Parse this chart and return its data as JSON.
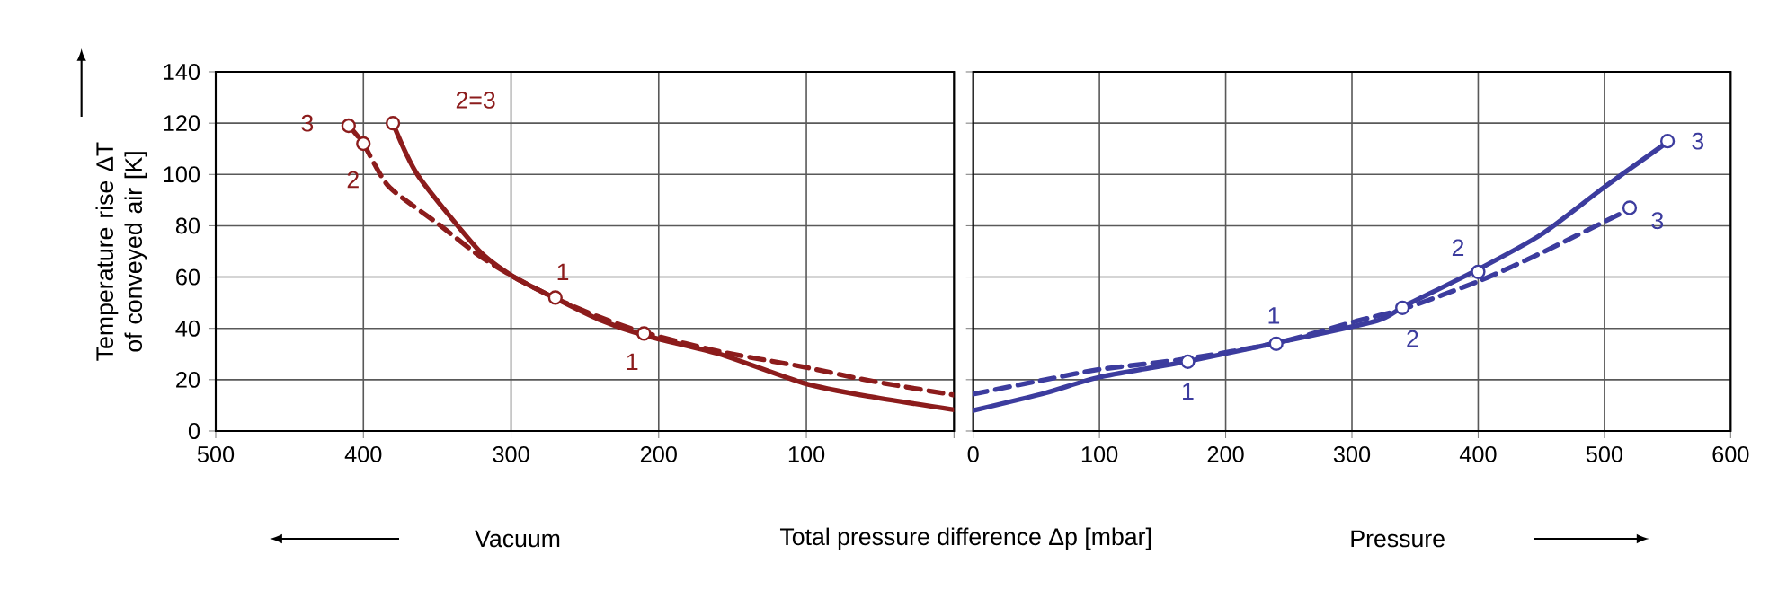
{
  "chart_data": [
    {
      "type": "line",
      "ylabel": "Temperature rise ΔT of conveyed air [K]",
      "xlabel": "Total pressure difference Δp [mbar]",
      "xlim": [
        500,
        0
      ],
      "ylim": [
        0,
        140
      ],
      "xticks": [
        500,
        400,
        300,
        200,
        100,
        {
          "value": 0,
          "label": null
        }
      ],
      "yticks": [
        0,
        20,
        40,
        60,
        80,
        100,
        120,
        140
      ],
      "grid": true,
      "series": [
        {
          "color": "#8c1c1c",
          "line_style": "solid",
          "x": [
            380,
            363,
            322,
            298,
            271,
            241,
            210,
            159,
            102,
            58,
            0
          ],
          "values": [
            120,
            99.6,
            70.5,
            60,
            52,
            43.6,
            37.3,
            30,
            18.7,
            13.5,
            8.3
          ]
        },
        {
          "color": "#8c1c1c",
          "line_style": "dashed",
          "x": [
            410,
            400,
            383,
            350,
            322,
            298,
            271,
            241,
            210,
            159,
            102,
            58,
            0
          ],
          "values": [
            119,
            112,
            95.4,
            81,
            68.5,
            60,
            52,
            44.6,
            38.4,
            31,
            25,
            19.7,
            14
          ]
        },
        {
          "type": "scatter",
          "marker": "circle",
          "color": "#8c1c1c",
          "x": [
            410,
            400,
            380,
            270,
            210
          ],
          "values": [
            119,
            112,
            120,
            52,
            38
          ]
        }
      ],
      "annotations": [
        "3",
        "2=3",
        "2",
        "1",
        "1",
        "Vacuum"
      ]
    },
    {
      "type": "line",
      "xlim": [
        0,
        600
      ],
      "ylim": [
        0,
        140
      ],
      "xticks": [
        0,
        100,
        200,
        300,
        400,
        500,
        600
      ],
      "yticks": [
        0,
        20,
        40,
        60,
        80,
        100,
        120,
        140
      ],
      "grid": true,
      "tick_labels": "x",
      "series": [
        {
          "color": "#3c3c9e",
          "line_style": "solid",
          "x": [
            0,
            57,
            100,
            170,
            241,
            320,
            342,
            400,
            450,
            499,
            550
          ],
          "values": [
            8,
            14.8,
            21,
            27.2,
            34.4,
            43,
            48.8,
            63,
            76.6,
            94.7,
            112.6
          ]
        },
        {
          "color": "#3c3c9e",
          "line_style": "dashed",
          "x": [
            0,
            57,
            100,
            170,
            241,
            302,
            342,
            401,
            450,
            520
          ],
          "values": [
            14.4,
            20,
            24,
            28.2,
            34.4,
            42.6,
            47.8,
            58.5,
            69.4,
            86.5
          ]
        },
        {
          "type": "scatter",
          "marker": "circle",
          "color": "#3c3c9e",
          "x": [
            170,
            240,
            340,
            400,
            550,
            520
          ],
          "values": [
            27,
            34,
            48,
            62,
            113,
            87
          ]
        }
      ],
      "annotations": [
        "1",
        "1",
        "2",
        "2",
        "3",
        "3",
        "Pressure"
      ]
    }
  ]
}
